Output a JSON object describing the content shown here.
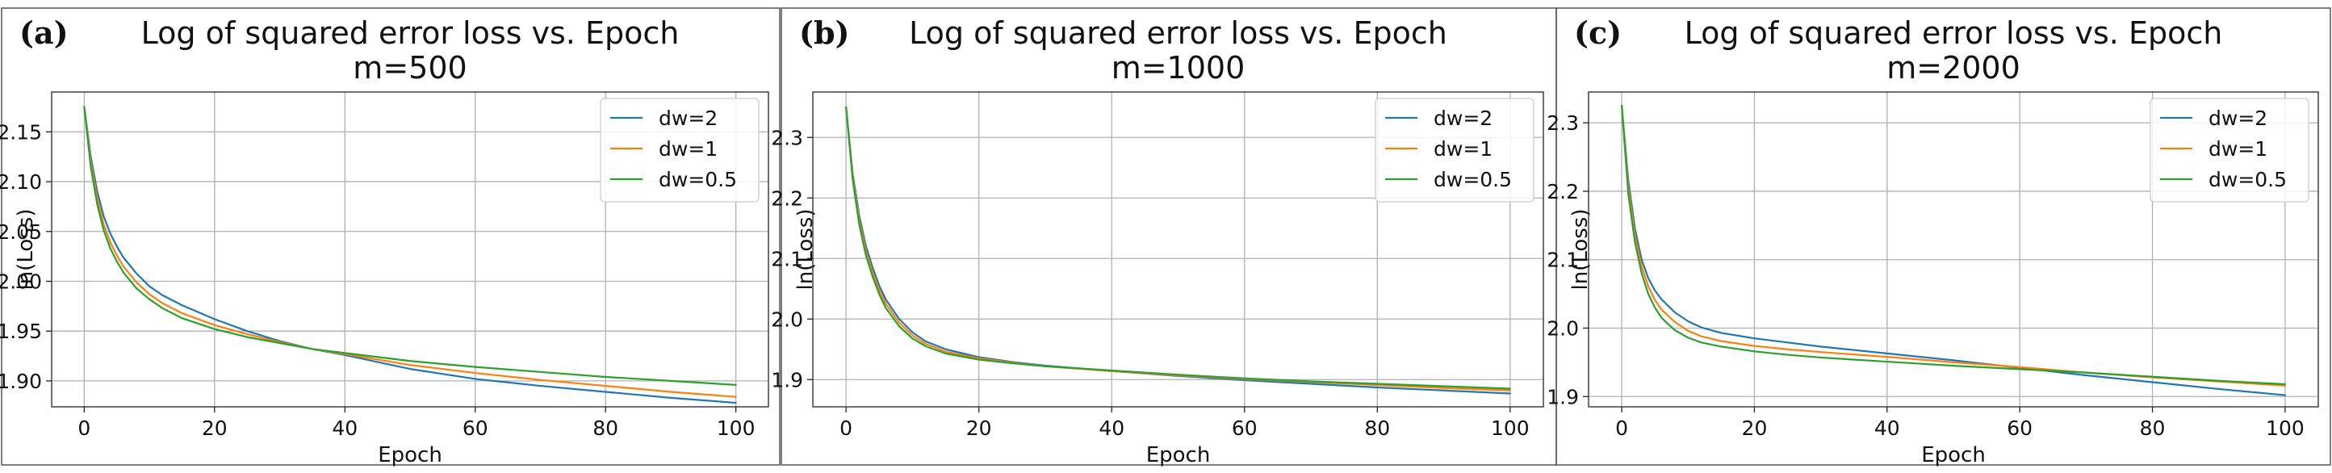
{
  "chart_data": [
    {
      "panel_label": "(a)",
      "type": "line",
      "title": "Log of squared error loss vs. Epoch",
      "subtitle": "m=500",
      "xlabel": "Epoch",
      "ylabel": "ln(Loss)",
      "xlim": [
        -5,
        105
      ],
      "ylim": [
        1.874,
        2.19
      ],
      "xticks": [
        0,
        20,
        40,
        60,
        80,
        100
      ],
      "yticks": [
        1.9,
        1.95,
        2.0,
        2.05,
        2.1,
        2.15
      ],
      "ytick_labels": [
        "1.90",
        "1.95",
        "2.00",
        "2.05",
        "2.10",
        "2.15"
      ],
      "grid": true,
      "legend": "top-right",
      "series": [
        {
          "name": "dw=2",
          "color": "#1f77b4",
          "x": [
            0,
            1,
            2,
            3,
            4,
            5,
            6,
            8,
            10,
            12,
            15,
            20,
            25,
            30,
            35,
            40,
            50,
            60,
            70,
            80,
            90,
            100
          ],
          "y": [
            2.175,
            2.125,
            2.09,
            2.065,
            2.048,
            2.035,
            2.024,
            2.008,
            1.995,
            1.986,
            1.976,
            1.962,
            1.95,
            1.94,
            1.932,
            1.926,
            1.912,
            1.902,
            1.895,
            1.889,
            1.883,
            1.878
          ]
        },
        {
          "name": "dw=1",
          "color": "#ff7f0e",
          "x": [
            0,
            1,
            2,
            3,
            4,
            5,
            6,
            8,
            10,
            12,
            15,
            20,
            25,
            30,
            35,
            40,
            50,
            60,
            70,
            80,
            90,
            100
          ],
          "y": [
            2.175,
            2.12,
            2.083,
            2.057,
            2.039,
            2.026,
            2.015,
            1.999,
            1.987,
            1.978,
            1.968,
            1.956,
            1.947,
            1.939,
            1.932,
            1.927,
            1.916,
            1.908,
            1.901,
            1.895,
            1.889,
            1.884
          ]
        },
        {
          "name": "dw=0.5",
          "color": "#2ca02c",
          "x": [
            0,
            1,
            2,
            3,
            4,
            5,
            6,
            8,
            10,
            12,
            15,
            20,
            25,
            30,
            35,
            40,
            50,
            60,
            70,
            80,
            90,
            100
          ],
          "y": [
            2.175,
            2.115,
            2.077,
            2.051,
            2.033,
            2.02,
            2.009,
            1.993,
            1.982,
            1.973,
            1.963,
            1.952,
            1.944,
            1.938,
            1.932,
            1.928,
            1.92,
            1.914,
            1.909,
            1.904,
            1.9,
            1.896
          ]
        }
      ]
    },
    {
      "panel_label": "(b)",
      "type": "line",
      "title": "Log of squared error loss vs. Epoch",
      "subtitle": "m=1000",
      "xlabel": "Epoch",
      "ylabel": "ln(Loss)",
      "xlim": [
        -5,
        105
      ],
      "ylim": [
        1.855,
        2.375
      ],
      "xticks": [
        0,
        20,
        40,
        60,
        80,
        100
      ],
      "yticks": [
        1.9,
        2.0,
        2.1,
        2.2,
        2.3
      ],
      "ytick_labels": [
        "1.9",
        "2.0",
        "2.1",
        "2.2",
        "2.3"
      ],
      "grid": true,
      "legend": "top-right",
      "series": [
        {
          "name": "dw=2",
          "color": "#1f77b4",
          "x": [
            0,
            1,
            2,
            3,
            4,
            5,
            6,
            8,
            10,
            12,
            15,
            20,
            25,
            30,
            40,
            50,
            60,
            70,
            80,
            90,
            100
          ],
          "y": [
            2.35,
            2.24,
            2.17,
            2.12,
            2.085,
            2.055,
            2.032,
            2.0,
            1.978,
            1.963,
            1.95,
            1.937,
            1.929,
            1.923,
            1.914,
            1.906,
            1.899,
            1.893,
            1.887,
            1.882,
            1.877
          ]
        },
        {
          "name": "dw=1",
          "color": "#ff7f0e",
          "x": [
            0,
            1,
            2,
            3,
            4,
            5,
            6,
            8,
            10,
            12,
            15,
            20,
            25,
            30,
            40,
            50,
            60,
            70,
            80,
            90,
            100
          ],
          "y": [
            2.35,
            2.235,
            2.162,
            2.112,
            2.077,
            2.048,
            2.025,
            1.994,
            1.973,
            1.959,
            1.946,
            1.935,
            1.928,
            1.922,
            1.914,
            1.907,
            1.901,
            1.896,
            1.891,
            1.886,
            1.882
          ]
        },
        {
          "name": "dw=0.5",
          "color": "#2ca02c",
          "x": [
            0,
            1,
            2,
            3,
            4,
            5,
            6,
            8,
            10,
            12,
            15,
            20,
            25,
            30,
            40,
            50,
            60,
            70,
            80,
            90,
            100
          ],
          "y": [
            2.35,
            2.23,
            2.155,
            2.105,
            2.07,
            2.041,
            2.018,
            1.988,
            1.968,
            1.955,
            1.943,
            1.933,
            1.927,
            1.922,
            1.915,
            1.908,
            1.902,
            1.897,
            1.893,
            1.889,
            1.885
          ]
        }
      ]
    },
    {
      "panel_label": "(c)",
      "type": "line",
      "title": "Log of squared error loss vs. Epoch",
      "subtitle": "m=2000",
      "xlabel": "Epoch",
      "ylabel": "ln(Loss)",
      "xlim": [
        -5,
        105
      ],
      "ylim": [
        1.885,
        2.345
      ],
      "xticks": [
        0,
        20,
        40,
        60,
        80,
        100
      ],
      "yticks": [
        1.9,
        2.0,
        2.1,
        2.2,
        2.3
      ],
      "ytick_labels": [
        "1.9",
        "2.0",
        "2.1",
        "2.2",
        "2.3"
      ],
      "grid": true,
      "legend": "top-right",
      "series": [
        {
          "name": "dw=2",
          "color": "#1f77b4",
          "x": [
            0,
            1,
            2,
            3,
            4,
            5,
            6,
            8,
            10,
            12,
            15,
            20,
            25,
            30,
            40,
            50,
            60,
            70,
            80,
            90,
            100
          ],
          "y": [
            2.325,
            2.215,
            2.145,
            2.1,
            2.073,
            2.055,
            2.042,
            2.023,
            2.01,
            2.001,
            1.993,
            1.985,
            1.979,
            1.973,
            1.963,
            1.953,
            1.942,
            1.931,
            1.921,
            1.911,
            1.902
          ]
        },
        {
          "name": "dw=1",
          "color": "#ff7f0e",
          "x": [
            0,
            1,
            2,
            3,
            4,
            5,
            6,
            8,
            10,
            12,
            15,
            20,
            25,
            30,
            40,
            50,
            60,
            70,
            80,
            90,
            100
          ],
          "y": [
            2.325,
            2.205,
            2.135,
            2.09,
            2.061,
            2.041,
            2.027,
            2.009,
            1.996,
            1.988,
            1.981,
            1.974,
            1.969,
            1.965,
            1.958,
            1.95,
            1.943,
            1.935,
            1.928,
            1.922,
            1.916
          ]
        },
        {
          "name": "dw=0.5",
          "color": "#2ca02c",
          "x": [
            0,
            1,
            2,
            3,
            4,
            5,
            6,
            8,
            10,
            12,
            15,
            20,
            25,
            30,
            40,
            50,
            60,
            70,
            80,
            90,
            100
          ],
          "y": [
            2.325,
            2.195,
            2.125,
            2.08,
            2.05,
            2.03,
            2.015,
            1.997,
            1.986,
            1.979,
            1.973,
            1.966,
            1.961,
            1.957,
            1.951,
            1.945,
            1.94,
            1.935,
            1.929,
            1.923,
            1.918
          ]
        }
      ]
    }
  ]
}
